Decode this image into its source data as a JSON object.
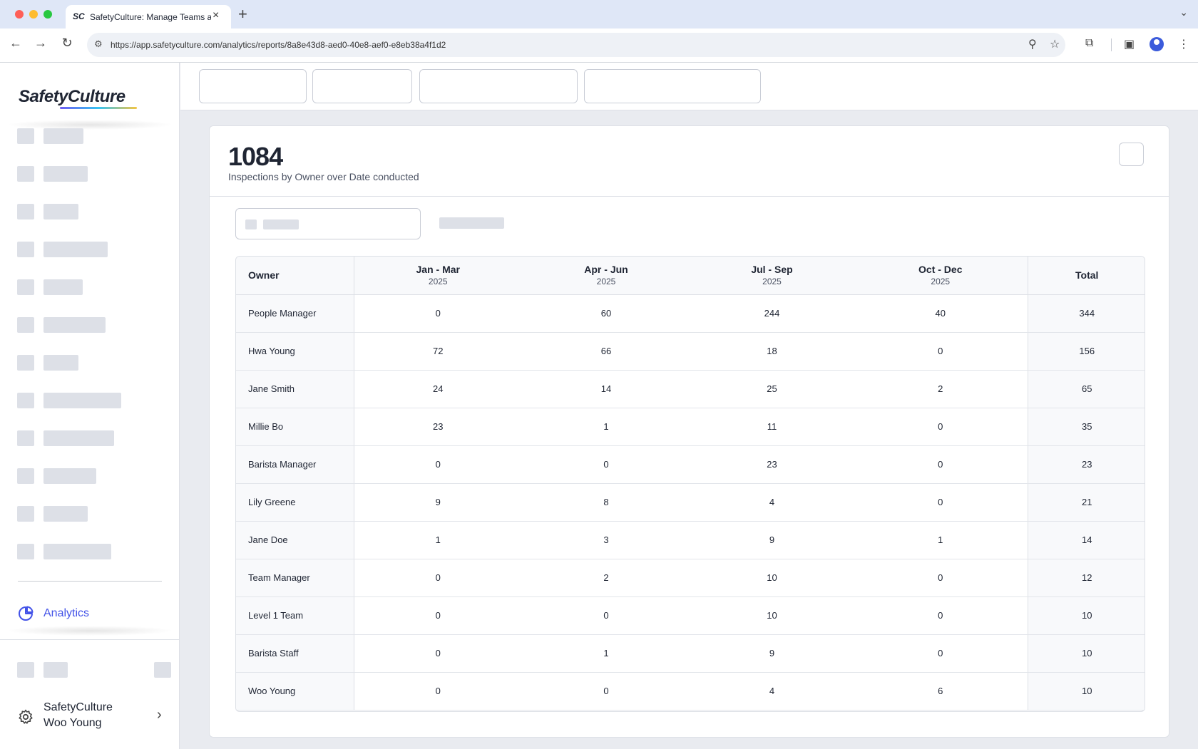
{
  "browser": {
    "tab_title": "SafetyCulture: Manage Teams and...",
    "tab_favicon": "SC",
    "url": "https://app.safetyculture.com/analytics/reports/8a8e43d8-aed0-40e8-aef0-e8eb38a4f1d2",
    "icons": [
      "back-icon",
      "forward-icon",
      "reload-icon",
      "site-settings-icon",
      "zoom-icon",
      "star-icon",
      "extensions-icon",
      "sidebar-icon",
      "profile-icon",
      "more-icon"
    ]
  },
  "sidebar": {
    "logo": "SafetyCulture",
    "active_item": "Analytics",
    "org_name": "SafetyCulture",
    "user_name": "Woo Young"
  },
  "report": {
    "count": "1084",
    "subtitle": "Inspections by Owner over Date conducted",
    "table": {
      "owner_header": "Owner",
      "total_header": "Total",
      "quarters": [
        {
          "label": "Jan - Mar",
          "year": "2025"
        },
        {
          "label": "Apr - Jun",
          "year": "2025"
        },
        {
          "label": "Jul - Sep",
          "year": "2025"
        },
        {
          "label": "Oct - Dec",
          "year": "2025"
        }
      ],
      "rows": [
        {
          "owner": "People Manager",
          "q1": "0",
          "q2": "60",
          "q3": "244",
          "q4": "40",
          "total": "344"
        },
        {
          "owner": "Hwa Young",
          "q1": "72",
          "q2": "66",
          "q3": "18",
          "q4": "0",
          "total": "156"
        },
        {
          "owner": "Jane Smith",
          "q1": "24",
          "q2": "14",
          "q3": "25",
          "q4": "2",
          "total": "65"
        },
        {
          "owner": "Millie Bo",
          "q1": "23",
          "q2": "1",
          "q3": "11",
          "q4": "0",
          "total": "35"
        },
        {
          "owner": "Barista Manager",
          "q1": "0",
          "q2": "0",
          "q3": "23",
          "q4": "0",
          "total": "23"
        },
        {
          "owner": "Lily Greene",
          "q1": "9",
          "q2": "8",
          "q3": "4",
          "q4": "0",
          "total": "21"
        },
        {
          "owner": "Jane Doe",
          "q1": "1",
          "q2": "3",
          "q3": "9",
          "q4": "1",
          "total": "14"
        },
        {
          "owner": "Team Manager",
          "q1": "0",
          "q2": "2",
          "q3": "10",
          "q4": "0",
          "total": "12"
        },
        {
          "owner": "Level 1 Team",
          "q1": "0",
          "q2": "0",
          "q3": "10",
          "q4": "0",
          "total": "10"
        },
        {
          "owner": "Barista Staff",
          "q1": "0",
          "q2": "1",
          "q3": "9",
          "q4": "0",
          "total": "10"
        },
        {
          "owner": "Woo Young",
          "q1": "0",
          "q2": "0",
          "q3": "4",
          "q4": "6",
          "total": "10"
        }
      ]
    }
  },
  "colors": {
    "accent": "#4353e8",
    "skeleton": "#dde0e7",
    "page_background": "#e9ebf0"
  }
}
